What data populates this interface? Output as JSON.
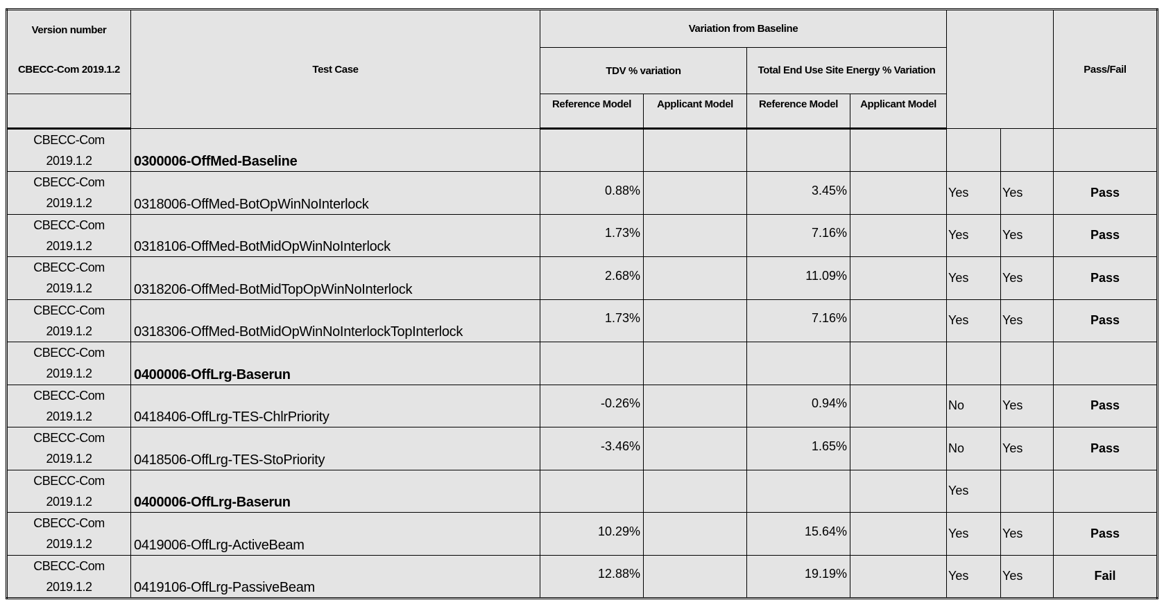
{
  "header": {
    "version_number": "Version number",
    "version_value": "CBECC-Com 2019.1.2",
    "test_case": "Test Case",
    "variation_from_baseline": "Variation from Baseline",
    "tdv_variation": "TDV % variation",
    "site_energy_variation": "Total End Use Site Energy % Variation",
    "reference_model": "Reference Model",
    "applicant_model": "Applicant Model",
    "pass_fail": "Pass/Fail"
  },
  "rows": [
    {
      "version_line1": "CBECC-Com",
      "version_line2": "2019.1.2",
      "test_case": "0300006-OffMed-Baseline",
      "bold": true,
      "tdv_ref": "",
      "tdv_app": "",
      "site_ref": "",
      "site_app": "",
      "check1": "",
      "check2": "",
      "result": ""
    },
    {
      "version_line1": "CBECC-Com",
      "version_line2": "2019.1.2",
      "test_case": "0318006-OffMed-BotOpWinNoInterlock",
      "bold": false,
      "tdv_ref": "0.88%",
      "tdv_app": "",
      "site_ref": "3.45%",
      "site_app": "",
      "check1": "Yes",
      "check2": "Yes",
      "result": "Pass"
    },
    {
      "version_line1": "CBECC-Com",
      "version_line2": "2019.1.2",
      "test_case": "0318106-OffMed-BotMidOpWinNoInterlock",
      "bold": false,
      "tdv_ref": "1.73%",
      "tdv_app": "",
      "site_ref": "7.16%",
      "site_app": "",
      "check1": "Yes",
      "check2": "Yes",
      "result": "Pass"
    },
    {
      "version_line1": "CBECC-Com",
      "version_line2": "2019.1.2",
      "test_case": "0318206-OffMed-BotMidTopOpWinNoInterlock",
      "bold": false,
      "tdv_ref": "2.68%",
      "tdv_app": "",
      "site_ref": "11.09%",
      "site_app": "",
      "check1": "Yes",
      "check2": "Yes",
      "result": "Pass"
    },
    {
      "version_line1": "CBECC-Com",
      "version_line2": "2019.1.2",
      "test_case": "0318306-OffMed-BotMidOpWinNoInterlockTopInterlock",
      "bold": false,
      "tdv_ref": "1.73%",
      "tdv_app": "",
      "site_ref": "7.16%",
      "site_app": "",
      "check1": "Yes",
      "check2": "Yes",
      "result": "Pass"
    },
    {
      "version_line1": "CBECC-Com",
      "version_line2": "2019.1.2",
      "test_case": "0400006-OffLrg-Baserun",
      "bold": true,
      "tdv_ref": "",
      "tdv_app": "",
      "site_ref": "",
      "site_app": "",
      "check1": "",
      "check2": "",
      "result": ""
    },
    {
      "version_line1": "CBECC-Com",
      "version_line2": "2019.1.2",
      "test_case": "0418406-OffLrg-TES-ChlrPriority",
      "bold": false,
      "tdv_ref": "-0.26%",
      "tdv_app": "",
      "site_ref": "0.94%",
      "site_app": "",
      "check1": "No",
      "check2": "Yes",
      "result": "Pass"
    },
    {
      "version_line1": "CBECC-Com",
      "version_line2": "2019.1.2",
      "test_case": "0418506-OffLrg-TES-StoPriority",
      "bold": false,
      "tdv_ref": "-3.46%",
      "tdv_app": "",
      "site_ref": "1.65%",
      "site_app": "",
      "check1": "No",
      "check2": "Yes",
      "result": "Pass"
    },
    {
      "version_line1": "CBECC-Com",
      "version_line2": "2019.1.2",
      "test_case": "0400006-OffLrg-Baserun",
      "bold": true,
      "tdv_ref": "",
      "tdv_app": "",
      "site_ref": "",
      "site_app": "",
      "check1": "Yes",
      "check2": "",
      "result": ""
    },
    {
      "version_line1": "CBECC-Com",
      "version_line2": "2019.1.2",
      "test_case": "0419006-OffLrg-ActiveBeam",
      "bold": false,
      "tdv_ref": "10.29%",
      "tdv_app": "",
      "site_ref": "15.64%",
      "site_app": "",
      "check1": "Yes",
      "check2": "Yes",
      "result": "Pass"
    },
    {
      "version_line1": "CBECC-Com",
      "version_line2": "2019.1.2",
      "test_case": "0419106-OffLrg-PassiveBeam",
      "bold": false,
      "tdv_ref": "12.88%",
      "tdv_app": "",
      "site_ref": "19.19%",
      "site_app": "",
      "check1": "Yes",
      "check2": "Yes",
      "result": "Fail"
    }
  ]
}
